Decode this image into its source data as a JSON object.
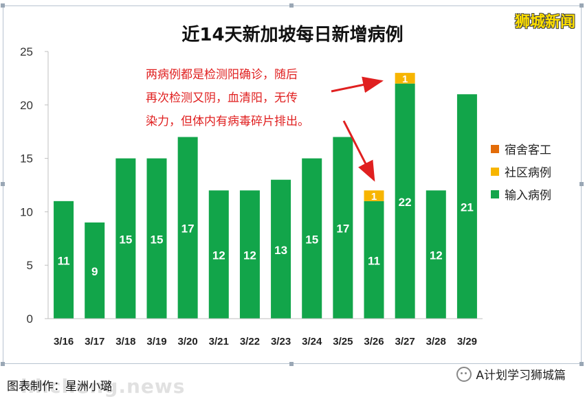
{
  "brand": "狮城新闻",
  "annotation": {
    "lines": [
      "两病例都是检测阳确诊，随后",
      "再次检测又阴，血清阳，无传",
      "染力，但体内有病毒碎片排出。"
    ]
  },
  "colors": {
    "imported": "#12a54a",
    "community": "#f7b500",
    "dormitory": "#e36c09",
    "annotation": "#e02020"
  },
  "footer": {
    "credit": "图表制作：星洲小璐",
    "account": "A计划学习狮城篇",
    "watermark": "hhcheng.news"
  },
  "chart_data": {
    "type": "bar",
    "title": "近14天新加坡每日新增病例",
    "categories": [
      "3/16",
      "3/17",
      "3/18",
      "3/19",
      "3/20",
      "3/21",
      "3/22",
      "3/23",
      "3/24",
      "3/25",
      "3/26",
      "3/27",
      "3/28",
      "3/29"
    ],
    "series": [
      {
        "name": "输入病例",
        "values": [
          11,
          9,
          15,
          15,
          17,
          12,
          12,
          13,
          15,
          17,
          11,
          22,
          12,
          21
        ]
      },
      {
        "name": "社区病例",
        "values": [
          0,
          0,
          0,
          0,
          0,
          0,
          0,
          0,
          0,
          0,
          1,
          1,
          0,
          0
        ]
      },
      {
        "name": "宿舍客工",
        "values": [
          0,
          0,
          0,
          0,
          0,
          0,
          0,
          0,
          0,
          0,
          0,
          0,
          0,
          0
        ]
      }
    ],
    "stacked": true,
    "ylim": [
      0,
      25
    ],
    "yticks": [
      0,
      5,
      10,
      15,
      20,
      25
    ],
    "grid": false,
    "legend_position": "right"
  }
}
